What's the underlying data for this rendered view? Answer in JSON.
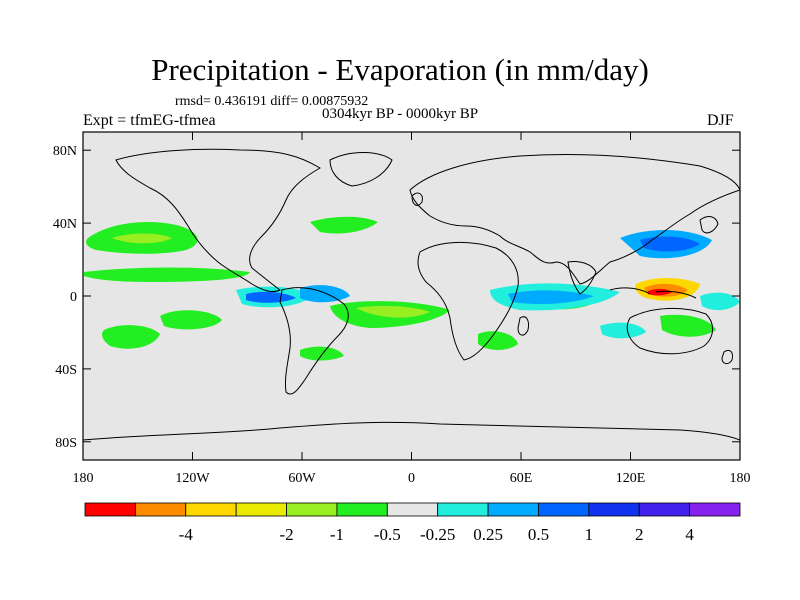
{
  "title": "Precipitation - Evaporation (in mm/day)",
  "stats": "rmsd= 0.436191 diff= 0.00875932",
  "experiment": "Expt = tfmEG-tfmea",
  "period": "0304kyr BP - 0000kyr BP",
  "season": "DJF",
  "map": {
    "projection": "cylindrical-equidistant",
    "lon_range": [
      -180,
      180
    ],
    "lat_range": [
      -90,
      90
    ],
    "ocean_fill": "#e6e6e6",
    "coastline_color": "#000000",
    "lat_ticks": [
      {
        "value": 80,
        "label": "80N"
      },
      {
        "value": 40,
        "label": "40N"
      },
      {
        "value": 0,
        "label": "0"
      },
      {
        "value": -40,
        "label": "40S"
      },
      {
        "value": -80,
        "label": "80S"
      }
    ],
    "lon_ticks": [
      {
        "value": -180,
        "label": "180"
      },
      {
        "value": -120,
        "label": "120W"
      },
      {
        "value": -60,
        "label": "60W"
      },
      {
        "value": 0,
        "label": "0"
      },
      {
        "value": 60,
        "label": "60E"
      },
      {
        "value": 120,
        "label": "120E"
      },
      {
        "value": 180,
        "label": "180"
      }
    ]
  },
  "colorbar": {
    "colors": [
      "#ff0000",
      "#ff8c00",
      "#ffd700",
      "#eaea00",
      "#99ee22",
      "#22ee22",
      "#e6e6e6",
      "#22eedd",
      "#00aaff",
      "#0066ff",
      "#1133ee",
      "#4422ee",
      "#8822ee"
    ],
    "labels": [
      {
        "boundary": 2,
        "text": "-4"
      },
      {
        "boundary": 4,
        "text": "-2"
      },
      {
        "boundary": 5,
        "text": "-1"
      },
      {
        "boundary": 6,
        "text": "-0.5"
      },
      {
        "boundary": 7,
        "text": "-0.25"
      },
      {
        "boundary": 8,
        "text": "0.25"
      },
      {
        "boundary": 9,
        "text": "0.5"
      },
      {
        "boundary": 10,
        "text": "1"
      },
      {
        "boundary": 11,
        "text": "2"
      },
      {
        "boundary": 12,
        "text": "4"
      }
    ]
  }
}
